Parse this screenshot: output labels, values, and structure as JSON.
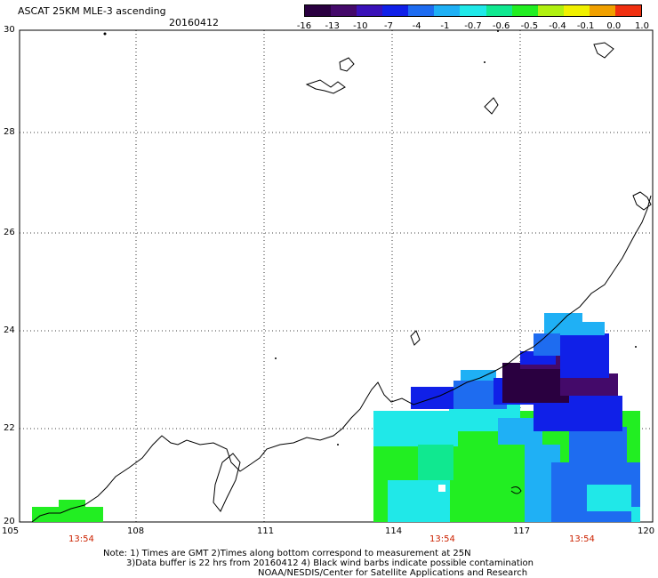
{
  "header": {
    "title": "ASCAT 25KM MLE-3 ascending",
    "date": "20160412"
  },
  "colorbar": {
    "labels": [
      "-16",
      "-13",
      "-10",
      "-7",
      "-4",
      "-1",
      "-0.7",
      "-0.6",
      "-0.5",
      "-0.4",
      "-0.1",
      "0.0",
      "1.0"
    ],
    "colors": [
      "#2a0040",
      "#440a6a",
      "#3a12b8",
      "#1020e8",
      "#1e6cf0",
      "#1fb0f5",
      "#20e8e8",
      "#10e890",
      "#22ee22",
      "#b0f010",
      "#f0f000",
      "#f0a000",
      "#f03010"
    ]
  },
  "axes": {
    "y_ticks": [
      "30",
      "28",
      "26",
      "24",
      "22",
      "20"
    ],
    "x_ticks": [
      "105",
      "108",
      "111",
      "114",
      "117",
      "120"
    ]
  },
  "time_labels": [
    "13:54",
    "13:54",
    "13:54"
  ],
  "notes": {
    "line1": "Note: 1) Times are GMT 2)Times along bottom correspond to measurement at 25N",
    "line2": "3)Data buffer is 22 hrs from 20160412 4) Black wind barbs indicate possible contamination",
    "line3": "NOAA/NESDIS/Center for Satellite Applications and Research"
  }
}
